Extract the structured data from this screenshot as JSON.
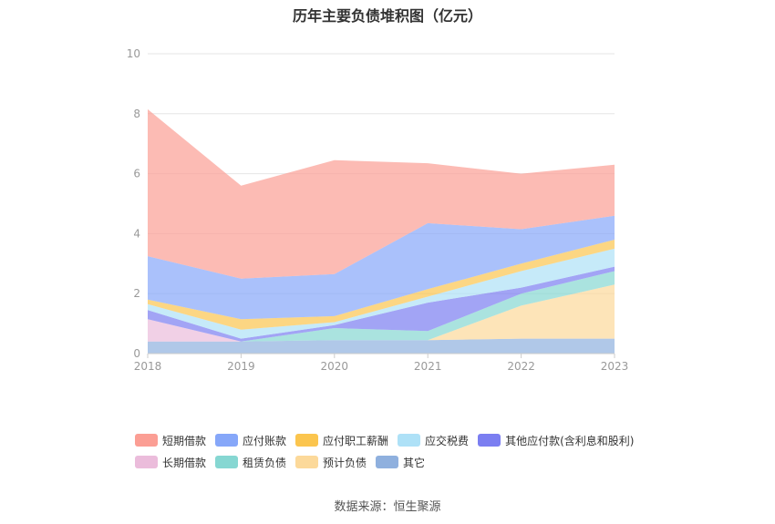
{
  "title": "历年主要负债堆积图（亿元）",
  "source": "数据来源：恒生聚源",
  "chart_data": {
    "type": "area",
    "stacked": true,
    "categories": [
      "2018",
      "2019",
      "2020",
      "2021",
      "2022",
      "2023"
    ],
    "ylim": [
      0,
      10
    ],
    "yticks": [
      "0",
      "2",
      "4",
      "6",
      "8",
      "10"
    ],
    "grid": true,
    "legend_position": "bottom",
    "series": [
      {
        "name": "其它",
        "color": "#8fb0de",
        "values": [
          0.4,
          0.4,
          0.45,
          0.45,
          0.5,
          0.5
        ]
      },
      {
        "name": "预计负债",
        "color": "#fcd99a",
        "values": [
          0.0,
          0.0,
          0.0,
          0.0,
          1.1,
          1.8
        ]
      },
      {
        "name": "租赁负债",
        "color": "#86d7d2",
        "values": [
          0.0,
          0.0,
          0.4,
          0.3,
          0.4,
          0.45
        ]
      },
      {
        "name": "长期借款",
        "color": "#ebbcdb",
        "values": [
          0.75,
          0.0,
          0.0,
          0.0,
          0.0,
          0.0
        ]
      },
      {
        "name": "其他应付款(含利息和股利)",
        "color": "#7b7ef1",
        "values": [
          0.3,
          0.1,
          0.1,
          0.95,
          0.2,
          0.15
        ]
      },
      {
        "name": "应交税费",
        "color": "#aee1f7",
        "values": [
          0.2,
          0.3,
          0.1,
          0.2,
          0.55,
          0.6
        ]
      },
      {
        "name": "应付职工薪酬",
        "color": "#fbc54e",
        "values": [
          0.15,
          0.35,
          0.2,
          0.25,
          0.25,
          0.3
        ]
      },
      {
        "name": "应付账款",
        "color": "#86a7f9",
        "values": [
          1.45,
          1.35,
          1.4,
          2.2,
          1.15,
          0.8
        ]
      },
      {
        "name": "短期借款",
        "color": "#fb9e94",
        "values": [
          4.9,
          3.1,
          3.8,
          2.0,
          1.85,
          1.7
        ]
      }
    ]
  },
  "legend": {
    "rows": [
      [
        {
          "name": "短期借款",
          "color": "#fb9e94"
        },
        {
          "name": "应付账款",
          "color": "#86a7f9"
        },
        {
          "name": "应付职工薪酬",
          "color": "#fbc54e"
        },
        {
          "name": "应交税费",
          "color": "#aee1f7"
        },
        {
          "name": "其他应付款(含利息和股利)",
          "color": "#7b7ef1"
        }
      ],
      [
        {
          "name": "长期借款",
          "color": "#ebbcdb"
        },
        {
          "name": "租赁负债",
          "color": "#86d7d2"
        },
        {
          "name": "预计负债",
          "color": "#fcd99a"
        },
        {
          "name": "其它",
          "color": "#8fb0de"
        }
      ]
    ]
  }
}
